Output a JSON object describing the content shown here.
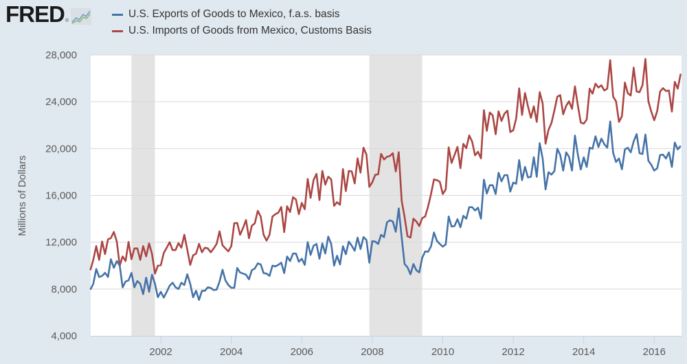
{
  "logo": {
    "text": "FRED",
    "icon": "fred-line-graph-icon"
  },
  "colors": {
    "exports": "#4572a7",
    "imports": "#aa4643",
    "recession": "#e3e3e3",
    "background": "#e1e9f0"
  },
  "chart_data": {
    "type": "line",
    "ylabel": "Millions of Dollars",
    "xlabel": "",
    "ylim": [
      4000,
      28000
    ],
    "yticks": [
      "4,000",
      "8,000",
      "12,000",
      "16,000",
      "20,000",
      "24,000",
      "28,000"
    ],
    "ytick_values": [
      4000,
      8000,
      12000,
      16000,
      20000,
      24000,
      28000
    ],
    "xticks": [
      "2002",
      "2004",
      "2006",
      "2008",
      "2010",
      "2012",
      "2014",
      "2016"
    ],
    "x_start": "2000-01",
    "x_step": "1 month",
    "x_end": "2016-10",
    "grid": "horizontal",
    "legend_position": "top",
    "recessions": [
      [
        "2001-03",
        "2001-11"
      ],
      [
        "2007-12",
        "2009-06"
      ]
    ],
    "series": [
      {
        "name": "U.S. Exports of Goods to Mexico, f.a.s. basis",
        "color": "#4572a7",
        "values": [
          7950,
          8440,
          9710,
          9030,
          9120,
          9380,
          9030,
          10550,
          9810,
          10390,
          10000,
          8150,
          8640,
          8740,
          9380,
          8150,
          8680,
          8440,
          7560,
          8970,
          7760,
          9220,
          8440,
          7300,
          7760,
          7270,
          7760,
          8280,
          8540,
          8150,
          8000,
          8540,
          8340,
          9260,
          8440,
          7300,
          7850,
          7070,
          7850,
          7850,
          8150,
          8090,
          7910,
          7950,
          8640,
          9650,
          8740,
          8340,
          8110,
          8110,
          9800,
          9410,
          9320,
          9220,
          8830,
          9610,
          9750,
          10190,
          10100,
          9360,
          9320,
          9120,
          10000,
          9940,
          10060,
          10250,
          9360,
          10780,
          10390,
          11030,
          11030,
          10330,
          10590,
          10060,
          12010,
          10920,
          11700,
          11850,
          10590,
          11890,
          11030,
          12480,
          11850,
          10000,
          10840,
          10100,
          11660,
          10970,
          12050,
          11700,
          11270,
          12400,
          11420,
          12440,
          12200,
          10250,
          12090,
          12050,
          11850,
          12630,
          12440,
          13700,
          13870,
          13770,
          12890,
          14890,
          12400,
          10140,
          9850,
          9260,
          10140,
          9610,
          9420,
          10670,
          11220,
          11180,
          11650,
          12830,
          12110,
          11850,
          11620,
          11810,
          14200,
          13340,
          13380,
          13970,
          13280,
          14260,
          14010,
          14990,
          14990,
          14710,
          14950,
          14010,
          17340,
          16160,
          16870,
          16870,
          16120,
          17930,
          17200,
          17730,
          17730,
          16320,
          17100,
          17000,
          19020,
          17300,
          18440,
          17530,
          17590,
          19260,
          17590,
          20460,
          19150,
          16510,
          17980,
          17780,
          18080,
          19990,
          19450,
          18120,
          19680,
          19290,
          18120,
          21110,
          19450,
          18210,
          19250,
          18430,
          20070,
          19990,
          21050,
          20130,
          20850,
          20380,
          20070,
          22320,
          19640,
          18860,
          19150,
          18230,
          19930,
          20070,
          19680,
          20620,
          21240,
          19600,
          19540,
          21200,
          18960,
          18620,
          18120,
          18310,
          19450,
          19480,
          19150,
          19680,
          18430,
          20520,
          19930,
          20230
        ]
      },
      {
        "name": "U.S. Imports of Goods from Mexico, Customs Basis",
        "color": "#aa4643",
        "values": [
          9610,
          10490,
          11670,
          10490,
          12060,
          10980,
          12250,
          12350,
          12880,
          12060,
          10000,
          10790,
          10390,
          12020,
          10550,
          11470,
          11470,
          10490,
          11670,
          10790,
          11900,
          10980,
          9320,
          10000,
          10040,
          11080,
          11530,
          12000,
          11330,
          11330,
          11920,
          11530,
          12640,
          11370,
          10060,
          10880,
          11020,
          11860,
          11140,
          11530,
          11470,
          11140,
          11470,
          11860,
          12930,
          11740,
          11470,
          11220,
          11670,
          13620,
          13640,
          12630,
          13220,
          13900,
          12340,
          13410,
          13610,
          14680,
          14190,
          12630,
          12140,
          12630,
          14190,
          14390,
          14520,
          15010,
          12860,
          15070,
          14580,
          15850,
          15650,
          14390,
          15360,
          14820,
          17410,
          15790,
          17310,
          17840,
          15600,
          18090,
          16920,
          17600,
          17370,
          15110,
          15420,
          15200,
          18250,
          16370,
          18090,
          18050,
          17020,
          19160,
          17940,
          20080,
          19490,
          16730,
          17120,
          17760,
          17800,
          19550,
          19070,
          19300,
          19360,
          19610,
          18040,
          19690,
          15530,
          14160,
          12500,
          12400,
          14010,
          13770,
          13380,
          14060,
          14200,
          15040,
          16120,
          17360,
          17300,
          17160,
          16120,
          16510,
          20100,
          18770,
          19450,
          20140,
          18320,
          20400,
          20040,
          21120,
          20590,
          19420,
          19730,
          19160,
          23280,
          21510,
          23080,
          22830,
          21220,
          23180,
          22360,
          22980,
          23240,
          21410,
          21570,
          22590,
          25140,
          22880,
          24750,
          23610,
          22630,
          23610,
          22280,
          24820,
          23850,
          20420,
          21600,
          22180,
          23260,
          24430,
          24570,
          22930,
          23650,
          24040,
          23400,
          25310,
          23650,
          22220,
          22130,
          22480,
          25120,
          24690,
          25550,
          25210,
          25410,
          24960,
          25120,
          27560,
          24430,
          24040,
          22280,
          22770,
          25640,
          24730,
          24530,
          26920,
          24880,
          24820,
          25410,
          27660,
          24040,
          23160,
          22420,
          23200,
          24880,
          25160,
          24920,
          24960,
          23160,
          25700,
          25120,
          26390
        ]
      }
    ]
  }
}
